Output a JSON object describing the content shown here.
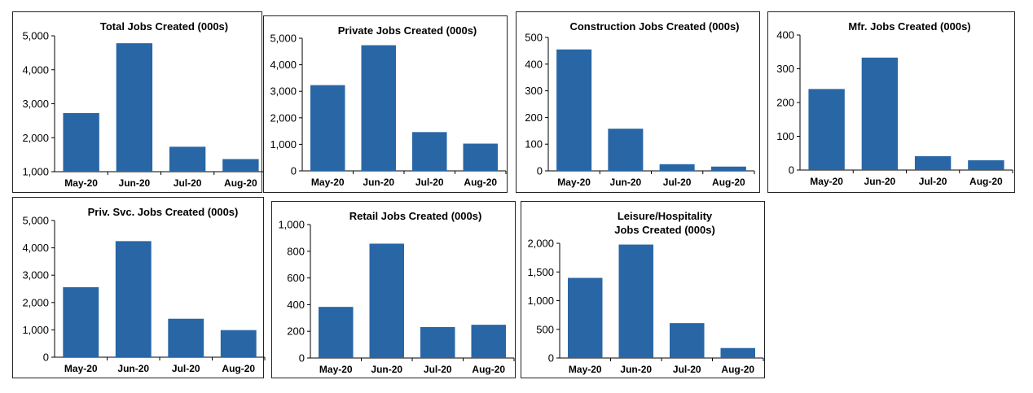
{
  "chart_data": [
    {
      "type": "bar",
      "title": [
        "Total Jobs Created (000s)"
      ],
      "categories": [
        "May-20",
        "Jun-20",
        "Jul-20",
        "Aug-20"
      ],
      "values": [
        2725,
        4781,
        1734,
        1371
      ],
      "ylim": [
        1000,
        5000
      ],
      "yticks": [
        1000,
        2000,
        3000,
        4000,
        5000
      ],
      "ytick_labels": [
        "1,000",
        "2,000",
        "3,000",
        "4,000",
        "5,000"
      ],
      "bar_color": "#2866a6",
      "grid": false
    },
    {
      "type": "bar",
      "title": [
        "Private Jobs Created (000s)"
      ],
      "categories": [
        "May-20",
        "Jun-20",
        "Jul-20",
        "Aug-20"
      ],
      "values": [
        3232,
        4737,
        1462,
        1027
      ],
      "ylim": [
        0,
        5000
      ],
      "yticks": [
        0,
        1000,
        2000,
        3000,
        4000,
        5000
      ],
      "ytick_labels": [
        "0",
        "1,000",
        "2,000",
        "3,000",
        "4,000",
        "5,000"
      ],
      "bar_color": "#2866a6",
      "grid": false
    },
    {
      "type": "bar",
      "title": [
        "Construction Jobs Created (000s)"
      ],
      "categories": [
        "May-20",
        "Jun-20",
        "Jul-20",
        "Aug-20"
      ],
      "values": [
        455,
        158,
        25,
        16
      ],
      "ylim": [
        0,
        500
      ],
      "yticks": [
        0,
        100,
        200,
        300,
        400,
        500
      ],
      "ytick_labels": [
        "0",
        "100",
        "200",
        "300",
        "400",
        "500"
      ],
      "bar_color": "#2866a6",
      "grid": false
    },
    {
      "type": "bar",
      "title": [
        "Mfr. Jobs Created (000s)"
      ],
      "categories": [
        "May-20",
        "Jun-20",
        "Jul-20",
        "Aug-20"
      ],
      "values": [
        240,
        333,
        41,
        29
      ],
      "ylim": [
        0,
        400
      ],
      "yticks": [
        0,
        100,
        200,
        300,
        400
      ],
      "ytick_labels": [
        "0",
        "100",
        "200",
        "300",
        "400"
      ],
      "bar_color": "#2866a6",
      "grid": false
    },
    {
      "type": "bar",
      "title": [
        "Priv. Svc. Jobs Created (000s)"
      ],
      "categories": [
        "May-20",
        "Jun-20",
        "Jul-20",
        "Aug-20"
      ],
      "values": [
        2559,
        4245,
        1407,
        991
      ],
      "ylim": [
        0,
        5000
      ],
      "yticks": [
        0,
        1000,
        2000,
        3000,
        4000,
        5000
      ],
      "ytick_labels": [
        "0",
        "1,000",
        "2,000",
        "3,000",
        "4,000",
        "5,000"
      ],
      "bar_color": "#2866a6",
      "grid": false
    },
    {
      "type": "bar",
      "title": [
        "Retail Jobs Created (000s)"
      ],
      "categories": [
        "May-20",
        "Jun-20",
        "Jul-20",
        "Aug-20"
      ],
      "values": [
        383,
        857,
        232,
        249
      ],
      "ylim": [
        0,
        1000
      ],
      "yticks": [
        0,
        200,
        400,
        600,
        800,
        1000
      ],
      "ytick_labels": [
        "0",
        "200",
        "400",
        "600",
        "800",
        "1,000"
      ],
      "bar_color": "#2866a6",
      "grid": false
    },
    {
      "type": "bar",
      "title": [
        "Leisure/Hospitality",
        "Jobs Created (000s)"
      ],
      "categories": [
        "May-20",
        "Jun-20",
        "Jul-20",
        "Aug-20"
      ],
      "values": [
        1397,
        1978,
        608,
        174
      ],
      "ylim": [
        0,
        2000
      ],
      "yticks": [
        0,
        500,
        1000,
        1500,
        2000
      ],
      "ytick_labels": [
        "0",
        "500",
        "1,000",
        "1,500",
        "2,000"
      ],
      "bar_color": "#2866a6",
      "grid": false
    }
  ]
}
